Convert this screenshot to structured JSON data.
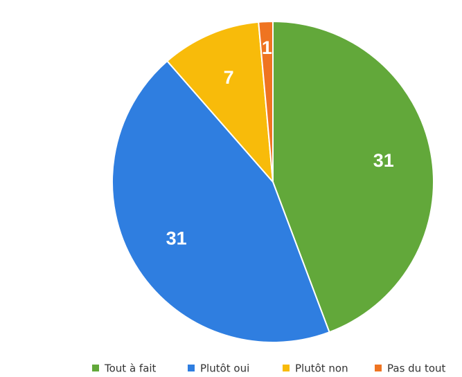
{
  "chart_data": {
    "type": "pie",
    "categories": [
      "Tout à fait",
      "Plutôt oui",
      "Plutôt non",
      "Pas du tout"
    ],
    "values": [
      31,
      31,
      7,
      1
    ],
    "colors": [
      "#62a83a",
      "#2f7ee0",
      "#f8bb0a",
      "#ef7421"
    ],
    "legend": "bottom"
  }
}
